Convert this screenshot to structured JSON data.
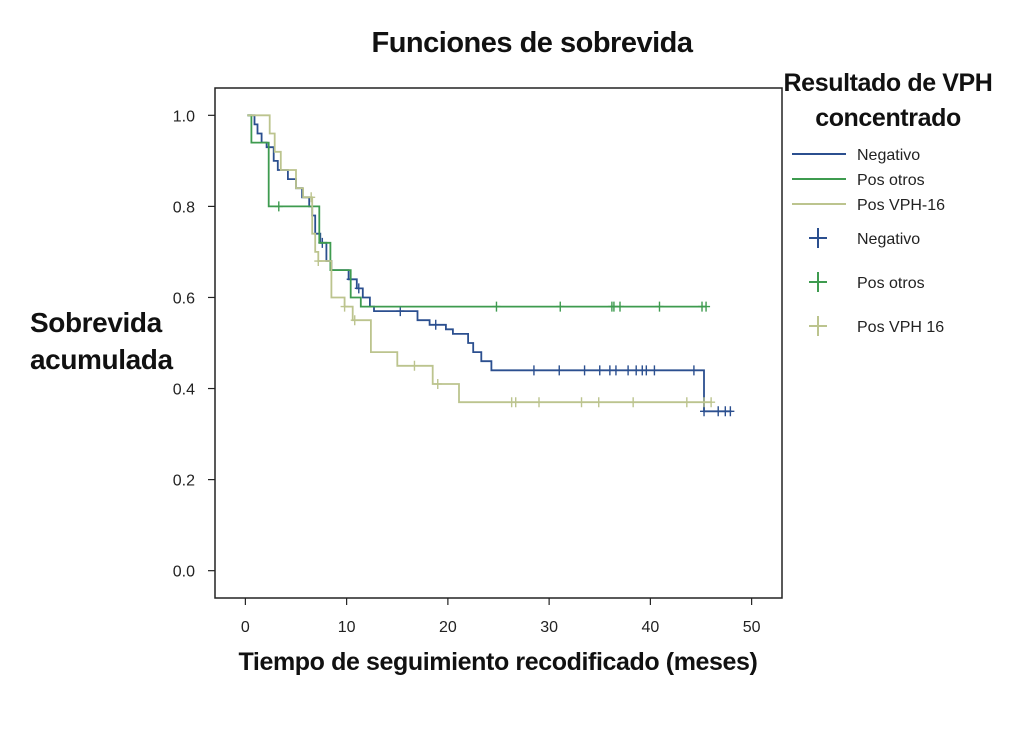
{
  "chart_data": {
    "type": "line",
    "subtype": "kaplan-meier step survival curve with censor marks",
    "title": "Funciones de sobrevida",
    "xlabel": "Tiempo de seguimiento recodificado (meses)",
    "ylabel_lines": [
      "Sobrevida",
      "acumulada"
    ],
    "xlim": [
      -3,
      53
    ],
    "ylim": [
      -0.06,
      1.06
    ],
    "xticks": [
      0,
      10,
      20,
      30,
      40,
      50
    ],
    "xtick_labels": [
      "0",
      "10",
      "20",
      "30",
      "40",
      "50"
    ],
    "yticks": [
      0,
      0.2,
      0.4,
      0.6,
      0.8,
      1.0
    ],
    "ytick_labels": [
      "0.0",
      "0.2",
      "0.4",
      "0.6",
      "0.8",
      "1.0"
    ],
    "grid": false,
    "legend": {
      "title_lines": [
        "Resultado de VPH",
        "concentrado"
      ],
      "placement": "right",
      "line_entries": [
        "Negativo",
        "Pos otros",
        "Pos VPH-16"
      ],
      "censor_entries": [
        "Negativo",
        "Pos otros",
        "Pos VPH 16"
      ]
    },
    "series": [
      {
        "name": "Negativo",
        "color": "#2b4f8f",
        "steps": [
          [
            0.2,
            1.0
          ],
          [
            0.9,
            0.98
          ],
          [
            1.2,
            0.96
          ],
          [
            1.6,
            0.94
          ],
          [
            2.1,
            0.93
          ],
          [
            2.8,
            0.9
          ],
          [
            3.2,
            0.88
          ],
          [
            4.2,
            0.86
          ],
          [
            5.0,
            0.84
          ],
          [
            5.6,
            0.82
          ],
          [
            6.3,
            0.8
          ],
          [
            6.6,
            0.78
          ],
          [
            6.9,
            0.74
          ],
          [
            7.4,
            0.72
          ],
          [
            8.0,
            0.68
          ],
          [
            8.5,
            0.66
          ],
          [
            10.2,
            0.64
          ],
          [
            11.0,
            0.62
          ],
          [
            11.6,
            0.6
          ],
          [
            12.3,
            0.58
          ],
          [
            12.7,
            0.57
          ],
          [
            17.0,
            0.55
          ],
          [
            18.2,
            0.54
          ],
          [
            19.8,
            0.53
          ],
          [
            20.5,
            0.52
          ],
          [
            22.0,
            0.5
          ],
          [
            22.5,
            0.48
          ],
          [
            23.3,
            0.46
          ],
          [
            24.3,
            0.44
          ],
          [
            45.3,
            0.35
          ],
          [
            48.0,
            0.35
          ]
        ],
        "censors": [
          [
            7.6,
            0.72
          ],
          [
            10.4,
            0.64
          ],
          [
            11.2,
            0.62
          ],
          [
            15.3,
            0.57
          ],
          [
            18.8,
            0.54
          ],
          [
            28.5,
            0.44
          ],
          [
            31.0,
            0.44
          ],
          [
            33.5,
            0.44
          ],
          [
            35.0,
            0.44
          ],
          [
            36.0,
            0.44
          ],
          [
            36.6,
            0.44
          ],
          [
            37.8,
            0.44
          ],
          [
            38.6,
            0.44
          ],
          [
            39.2,
            0.44
          ],
          [
            39.6,
            0.44
          ],
          [
            40.4,
            0.44
          ],
          [
            44.3,
            0.44
          ],
          [
            45.3,
            0.35
          ],
          [
            46.7,
            0.35
          ],
          [
            47.4,
            0.35
          ],
          [
            47.9,
            0.35
          ]
        ]
      },
      {
        "name": "Pos otros",
        "color": "#3e9b4f",
        "steps": [
          [
            0.2,
            1.0
          ],
          [
            0.6,
            0.94
          ],
          [
            2.3,
            0.8
          ],
          [
            7.3,
            0.72
          ],
          [
            8.4,
            0.66
          ],
          [
            10.4,
            0.6
          ],
          [
            11.4,
            0.58
          ],
          [
            45.5,
            0.58
          ]
        ],
        "censors": [
          [
            3.3,
            0.8
          ],
          [
            24.8,
            0.58
          ],
          [
            31.1,
            0.58
          ],
          [
            36.2,
            0.58
          ],
          [
            36.4,
            0.58
          ],
          [
            37.0,
            0.58
          ],
          [
            40.9,
            0.58
          ],
          [
            45.1,
            0.58
          ],
          [
            45.5,
            0.58
          ]
        ]
      },
      {
        "name": "Pos VPH-16",
        "color": "#bcc48e",
        "steps": [
          [
            0.2,
            1.0
          ],
          [
            2.4,
            0.96
          ],
          [
            2.9,
            0.92
          ],
          [
            3.5,
            0.88
          ],
          [
            5.0,
            0.84
          ],
          [
            5.7,
            0.82
          ],
          [
            6.6,
            0.74
          ],
          [
            6.9,
            0.7
          ],
          [
            7.2,
            0.68
          ],
          [
            8.5,
            0.6
          ],
          [
            9.8,
            0.58
          ],
          [
            10.6,
            0.55
          ],
          [
            12.4,
            0.48
          ],
          [
            15.0,
            0.45
          ],
          [
            18.5,
            0.41
          ],
          [
            21.1,
            0.37
          ],
          [
            46.0,
            0.37
          ]
        ],
        "censors": [
          [
            6.5,
            0.82
          ],
          [
            7.2,
            0.68
          ],
          [
            9.8,
            0.58
          ],
          [
            10.8,
            0.55
          ],
          [
            16.7,
            0.45
          ],
          [
            19.0,
            0.41
          ],
          [
            26.3,
            0.37
          ],
          [
            26.7,
            0.37
          ],
          [
            29.0,
            0.37
          ],
          [
            33.2,
            0.37
          ],
          [
            34.9,
            0.37
          ],
          [
            38.3,
            0.37
          ],
          [
            43.6,
            0.37
          ],
          [
            45.3,
            0.37
          ],
          [
            46.0,
            0.37
          ]
        ]
      }
    ]
  }
}
